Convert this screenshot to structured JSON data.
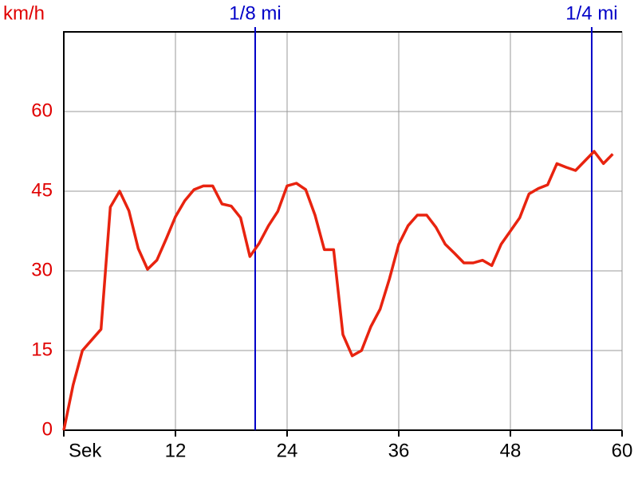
{
  "chart_data": {
    "type": "line",
    "y_label": "km/h",
    "x": [
      0,
      1,
      2,
      3,
      4,
      5,
      6,
      7,
      8,
      9,
      10,
      11,
      12,
      13,
      14,
      15,
      16,
      17,
      18,
      19,
      20,
      21,
      22,
      23,
      24,
      25,
      26,
      27,
      28,
      29,
      30,
      31,
      32,
      33,
      34,
      35,
      36,
      37,
      38,
      39,
      40,
      41,
      42,
      43,
      44,
      45,
      46,
      47,
      48,
      49,
      50,
      51,
      52,
      53,
      54,
      55,
      56,
      57,
      58,
      59
    ],
    "series": [
      {
        "color": "#e8230f",
        "values": [
          0,
          8.5,
          15,
          17,
          19,
          42,
          45,
          41.3,
          34.2,
          30.3,
          32,
          36,
          40.2,
          43.2,
          45.3,
          46,
          46,
          42.6,
          42.2,
          40,
          32.7,
          35.2,
          38.5,
          41.2,
          46,
          46.5,
          45.3,
          40.5,
          34,
          34,
          18,
          14,
          15,
          19.5,
          22.8,
          28.5,
          35,
          38.5,
          40.5,
          40.5,
          38.2,
          35,
          33.3,
          31.5,
          31.5,
          32,
          31,
          35,
          37.5,
          40,
          44.5,
          45.5,
          46.2,
          50.2,
          49.5,
          48.9,
          50.7,
          52.5,
          50.2,
          52
        ]
      }
    ],
    "xlim": [
      0,
      60
    ],
    "xticks": [
      {
        "value": 0,
        "label": "Sek"
      },
      12,
      24,
      36,
      48,
      60
    ],
    "ylim": [
      0,
      75
    ],
    "yticks": [
      0,
      15,
      30,
      45,
      60
    ],
    "grid": true,
    "markers": [
      {
        "label": "1/8 mi",
        "x": 20.57
      },
      {
        "label": "1/4 mi",
        "x": 56.74
      }
    ],
    "marker_color": "#0000c8",
    "y_color": "#e00000"
  }
}
